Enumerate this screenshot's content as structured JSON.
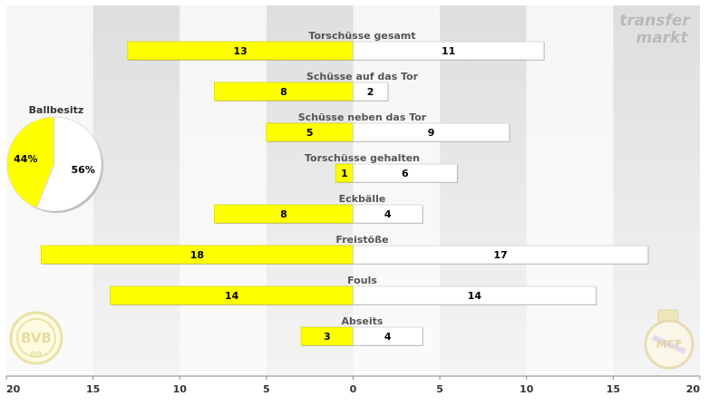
{
  "chart_data": {
    "type": "bar",
    "orientation": "diverging-horizontal",
    "categories": [
      "Torschüsse gesamt",
      "Schüsse auf das Tor",
      "Schüsse neben das Tor",
      "Torschüsse gehalten",
      "Eckbälle",
      "Freistöße",
      "Fouls",
      "Abseits"
    ],
    "series": [
      {
        "values": [
          13,
          8,
          5,
          1,
          8,
          18,
          14,
          3
        ],
        "color": "#ffff00"
      },
      {
        "values": [
          11,
          2,
          9,
          6,
          4,
          17,
          14,
          4
        ],
        "color": "#ffffff"
      }
    ],
    "x_ticks": [
      "20",
      "15",
      "10",
      "5",
      "0",
      "5",
      "10",
      "15",
      "20"
    ],
    "xlim": [
      -20,
      20
    ],
    "grid": "alternating vertical bands every 5",
    "band_colors": [
      "#f0f0f0",
      "#dcdcdc"
    ],
    "inset_pie": {
      "title": "Ballbesitz",
      "values": [
        44,
        56
      ],
      "labels": [
        "44%",
        "56%"
      ],
      "colors": [
        "#ffff00",
        "#ffffff"
      ]
    },
    "watermark": "transfer\nmarkt",
    "logos": {
      "left": "bvb-09-crest",
      "right": "real-madrid-crest"
    }
  }
}
